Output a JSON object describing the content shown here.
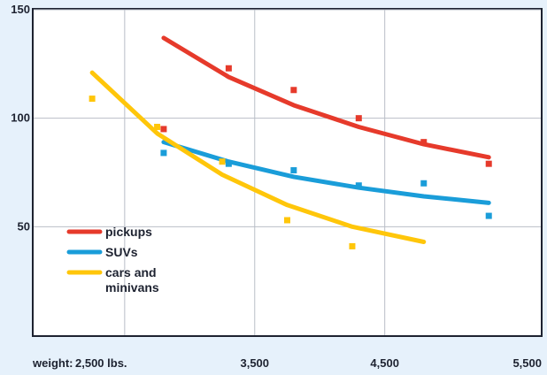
{
  "chart_data": {
    "type": "scatter",
    "x_axis": {
      "prefix": "weight:",
      "tick_labels": [
        "2,500 lbs.",
        "3,500",
        "4,500",
        "5,500"
      ],
      "tick_values": [
        2500,
        3500,
        4500,
        5500
      ],
      "range": [
        1800,
        5700
      ]
    },
    "y_axis": {
      "tick_labels": [
        "150",
        "100",
        "50"
      ],
      "tick_values": [
        150,
        100,
        50
      ],
      "range": [
        0,
        150
      ]
    },
    "grid": true,
    "legend_position": "bottom-left",
    "series": [
      {
        "name": "pickups",
        "color": "#e63a2b",
        "points": [
          [
            2800,
            95
          ],
          [
            3300,
            123
          ],
          [
            3800,
            113
          ],
          [
            4300,
            100
          ],
          [
            4800,
            89
          ],
          [
            5300,
            79
          ]
        ],
        "trend": [
          [
            2800,
            137
          ],
          [
            3300,
            119
          ],
          [
            3800,
            106
          ],
          [
            4300,
            96
          ],
          [
            4800,
            88
          ],
          [
            5300,
            82
          ]
        ]
      },
      {
        "name": "SUVs",
        "color": "#1a9dd9",
        "points": [
          [
            2800,
            84
          ],
          [
            3300,
            79
          ],
          [
            3800,
            76
          ],
          [
            4300,
            69
          ],
          [
            4800,
            70
          ],
          [
            5300,
            55
          ]
        ],
        "trend": [
          [
            2800,
            89
          ],
          [
            3300,
            80
          ],
          [
            3800,
            73
          ],
          [
            4300,
            68
          ],
          [
            4800,
            64
          ],
          [
            5300,
            61
          ]
        ]
      },
      {
        "name": "cars and minivans",
        "legend_lines": [
          "cars and",
          "minivans"
        ],
        "color": "#ffc60a",
        "points": [
          [
            2250,
            109
          ],
          [
            2750,
            96
          ],
          [
            3250,
            80
          ],
          [
            3750,
            53
          ],
          [
            4250,
            41
          ]
        ],
        "trend": [
          [
            2250,
            121
          ],
          [
            2750,
            93
          ],
          [
            3250,
            74
          ],
          [
            3750,
            60
          ],
          [
            4250,
            50
          ],
          [
            4800,
            43
          ]
        ]
      }
    ]
  }
}
